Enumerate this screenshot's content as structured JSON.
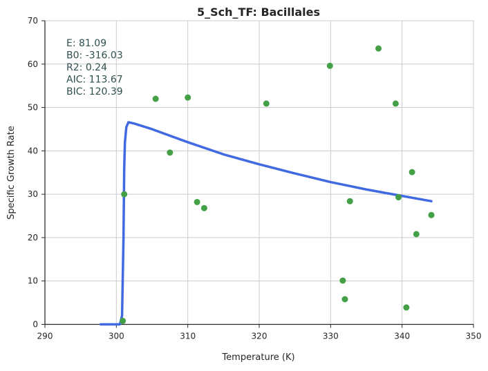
{
  "chart_data": {
    "type": "scatter",
    "title": "5_Sch_TF: Bacillales",
    "xlabel": "Temperature (K)",
    "ylabel": "Specific Growth Rate",
    "xlim": [
      290,
      350
    ],
    "ylim": [
      0,
      70
    ],
    "xticks": [
      290,
      300,
      310,
      320,
      330,
      340,
      350
    ],
    "yticks": [
      0,
      10,
      20,
      30,
      40,
      50,
      60,
      70
    ],
    "grid": true,
    "annotations": [
      {
        "label": "E:",
        "value": "81.09"
      },
      {
        "label": "B0:",
        "value": "-316.03"
      },
      {
        "label": "R2:",
        "value": "0.24"
      },
      {
        "label": "AIC:",
        "value": "113.67"
      },
      {
        "label": "BIC:",
        "value": "120.39"
      }
    ],
    "series": [
      {
        "type": "scatter",
        "color": "#43a047",
        "points": [
          {
            "x": 300.9,
            "y": 0.8
          },
          {
            "x": 301.1,
            "y": 30.0
          },
          {
            "x": 305.5,
            "y": 52.0
          },
          {
            "x": 307.5,
            "y": 39.6
          },
          {
            "x": 310.0,
            "y": 52.3
          },
          {
            "x": 311.3,
            "y": 28.2
          },
          {
            "x": 312.3,
            "y": 26.8
          },
          {
            "x": 321.0,
            "y": 50.9
          },
          {
            "x": 329.9,
            "y": 59.6
          },
          {
            "x": 331.7,
            "y": 10.1
          },
          {
            "x": 332.0,
            "y": 5.8
          },
          {
            "x": 332.7,
            "y": 28.4
          },
          {
            "x": 336.7,
            "y": 63.6
          },
          {
            "x": 339.1,
            "y": 50.9
          },
          {
            "x": 339.5,
            "y": 29.3
          },
          {
            "x": 340.6,
            "y": 3.9
          },
          {
            "x": 341.4,
            "y": 35.1
          },
          {
            "x": 342.0,
            "y": 20.8
          },
          {
            "x": 344.1,
            "y": 25.2
          }
        ]
      },
      {
        "type": "line",
        "color": "#4169e1",
        "points": [
          {
            "x": 297.8,
            "y": 0.0
          },
          {
            "x": 300.5,
            "y": 0.0
          },
          {
            "x": 300.8,
            "y": 2.0
          },
          {
            "x": 301.0,
            "y": 20.0
          },
          {
            "x": 301.1,
            "y": 36.0
          },
          {
            "x": 301.2,
            "y": 42.0
          },
          {
            "x": 301.4,
            "y": 45.5
          },
          {
            "x": 301.7,
            "y": 46.6
          },
          {
            "x": 302.5,
            "y": 46.3
          },
          {
            "x": 305.0,
            "y": 45.0
          },
          {
            "x": 310.0,
            "y": 42.0
          },
          {
            "x": 315.0,
            "y": 39.2
          },
          {
            "x": 320.0,
            "y": 36.9
          },
          {
            "x": 325.0,
            "y": 34.8
          },
          {
            "x": 330.0,
            "y": 32.8
          },
          {
            "x": 335.0,
            "y": 31.1
          },
          {
            "x": 340.0,
            "y": 29.6
          },
          {
            "x": 344.1,
            "y": 28.4
          }
        ]
      }
    ]
  }
}
